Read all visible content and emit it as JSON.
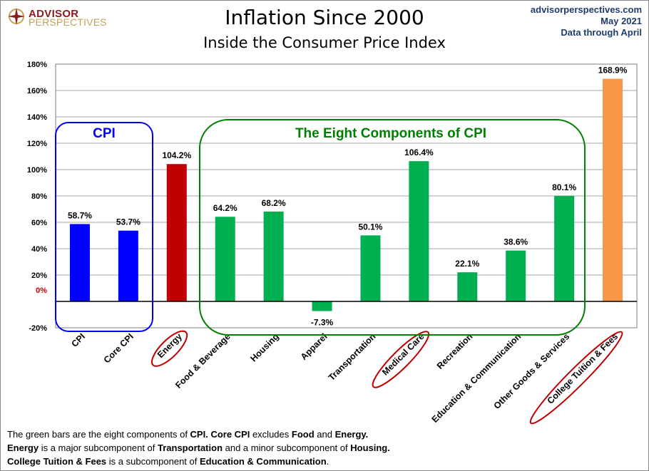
{
  "logo": {
    "line1": "ADVISOR",
    "line2": "PERSPECTIVES"
  },
  "header": {
    "title": "Inflation Since 2000",
    "subtitle": "Inside the Consumer Price Index",
    "site": "advisorperspectives.com",
    "date": "May 2021",
    "data_through": "Data through April"
  },
  "annotations": {
    "cpi_group": "CPI",
    "components_group": "The Eight Components of CPI"
  },
  "footnote": {
    "line1": [
      [
        "The green bars are the eight components of ",
        false
      ],
      [
        "CPI. Core CPI",
        true
      ],
      [
        " excludes ",
        false
      ],
      [
        "Food",
        true
      ],
      [
        " and ",
        false
      ],
      [
        "Energy.",
        true
      ]
    ],
    "line2": [
      [
        "Energy",
        true
      ],
      [
        " is a  major subcomponent of ",
        false
      ],
      [
        "Transportation",
        true
      ],
      [
        " and a minor subcomponent of ",
        false
      ],
      [
        "Housing.",
        true
      ]
    ],
    "line3": [
      [
        "College Tuition & Fees",
        true
      ],
      [
        " is a subcomponent of ",
        false
      ],
      [
        "Education & Communication",
        true
      ],
      [
        ".",
        false
      ]
    ]
  },
  "chart_data": {
    "type": "bar",
    "title": "Inflation Since 2000",
    "subtitle": "Inside the Consumer Price Index",
    "categories": [
      "CPI",
      "Core CPI",
      "Energy",
      "Food & Beverage",
      "Housing",
      "Apparel",
      "Transportation",
      "Medical Care",
      "Recreation",
      "Education & Communication",
      "Other Goods & Services",
      "College Tuition & Fees"
    ],
    "values": [
      58.7,
      53.7,
      104.2,
      64.2,
      68.2,
      -7.3,
      50.1,
      106.4,
      22.1,
      38.6,
      80.1,
      168.9
    ],
    "data_labels": [
      "58.7%",
      "53.7%",
      "104.2%",
      "64.2%",
      "68.2%",
      "-7.3%",
      "50.1%",
      "106.4%",
      "22.1%",
      "38.6%",
      "80.1%",
      "168.9%"
    ],
    "colors": [
      "#0000ff",
      "#0000ff",
      "#c00000",
      "#00b050",
      "#00b050",
      "#00b050",
      "#00b050",
      "#00b050",
      "#00b050",
      "#00b050",
      "#00b050",
      "#f79646"
    ],
    "circled_categories": [
      "Energy",
      "Medical Care",
      "College Tuition & Fees"
    ],
    "ylim": [
      -20,
      180
    ],
    "yticks": [
      "-20%",
      "0%",
      "20%",
      "40%",
      "60%",
      "80%",
      "100%",
      "120%",
      "140%",
      "160%",
      "180%"
    ],
    "grid": true,
    "xlabel": "",
    "ylabel": ""
  }
}
